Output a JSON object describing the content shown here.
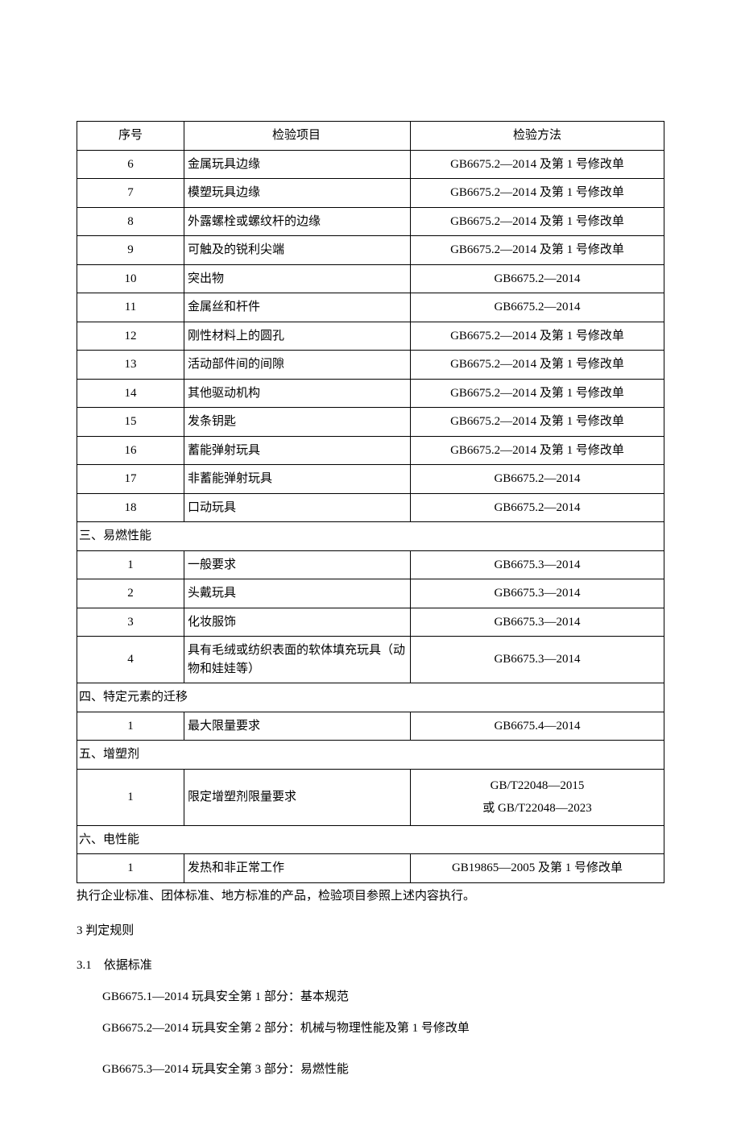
{
  "table": {
    "headers": {
      "num": "序号",
      "item": "检验项目",
      "method": "检验方法"
    },
    "rows": [
      {
        "num": "6",
        "item": "金属玩具边缘",
        "method": "GB6675.2—2014 及第 1 号修改单"
      },
      {
        "num": "7",
        "item": "模塑玩具边缘",
        "method": "GB6675.2—2014 及第 1 号修改单"
      },
      {
        "num": "8",
        "item": "外露螺栓或螺纹杆的边缘",
        "method": "GB6675.2—2014 及第 1 号修改单"
      },
      {
        "num": "9",
        "item": "可触及的锐利尖端",
        "method": "GB6675.2—2014 及第 1 号修改单"
      },
      {
        "num": "10",
        "item": "突出物",
        "method": "GB6675.2—2014"
      },
      {
        "num": "11",
        "item": "金属丝和杆件",
        "method": "GB6675.2—2014"
      },
      {
        "num": "12",
        "item": "刚性材料上的圆孔",
        "method": "GB6675.2—2014 及第 1 号修改单"
      },
      {
        "num": "13",
        "item": "活动部件间的间隙",
        "method": "GB6675.2—2014 及第 1 号修改单"
      },
      {
        "num": "14",
        "item": "其他驱动机构",
        "method": "GB6675.2—2014 及第 1 号修改单"
      },
      {
        "num": "15",
        "item": "发条钥匙",
        "method": "GB6675.2—2014 及第 1 号修改单"
      },
      {
        "num": "16",
        "item": "蓄能弹射玩具",
        "method": "GB6675.2—2014 及第 1 号修改单"
      },
      {
        "num": "17",
        "item": "非蓄能弹射玩具",
        "method": "GB6675.2—2014"
      },
      {
        "num": "18",
        "item": "口动玩具",
        "method": "GB6675.2—2014"
      }
    ],
    "section3": {
      "title": "三、易燃性能",
      "rows": [
        {
          "num": "1",
          "item": "一般要求",
          "method": "GB6675.3—2014"
        },
        {
          "num": "2",
          "item": "头戴玩具",
          "method": "GB6675.3—2014"
        },
        {
          "num": "3",
          "item": "化妆服饰",
          "method": "GB6675.3—2014"
        },
        {
          "num": "4",
          "item": "具有毛绒或纺织表面的软体填充玩具（动物和娃娃等）",
          "method": "GB6675.3—2014"
        }
      ]
    },
    "section4": {
      "title": "四、特定元素的迁移",
      "rows": [
        {
          "num": "1",
          "item": "最大限量要求",
          "method": "GB6675.4—2014"
        }
      ]
    },
    "section5": {
      "title": "五、增塑剂",
      "rows": [
        {
          "num": "1",
          "item": "限定增塑剂限量要求",
          "method_l1": "GB/T22048—2015",
          "method_l2": "或 GB/T22048—2023"
        }
      ]
    },
    "section6": {
      "title": "六、电性能",
      "rows": [
        {
          "num": "1",
          "item": "发热和非正常工作",
          "method": "GB19865—2005 及第 1 号修改单"
        }
      ]
    }
  },
  "note": "执行企业标准、团体标准、地方标准的产品，检验项目参照上述内容执行。",
  "s3_heading": "3 判定规则",
  "s31_heading": "3.1　依据标准",
  "standards": [
    "GB6675.1—2014 玩具安全第 1 部分：基本规范",
    "GB6675.2—2014 玩具安全第 2 部分：机械与物理性能及第 1 号修改单",
    "GB6675.3—2014 玩具安全第 3 部分：易燃性能"
  ]
}
